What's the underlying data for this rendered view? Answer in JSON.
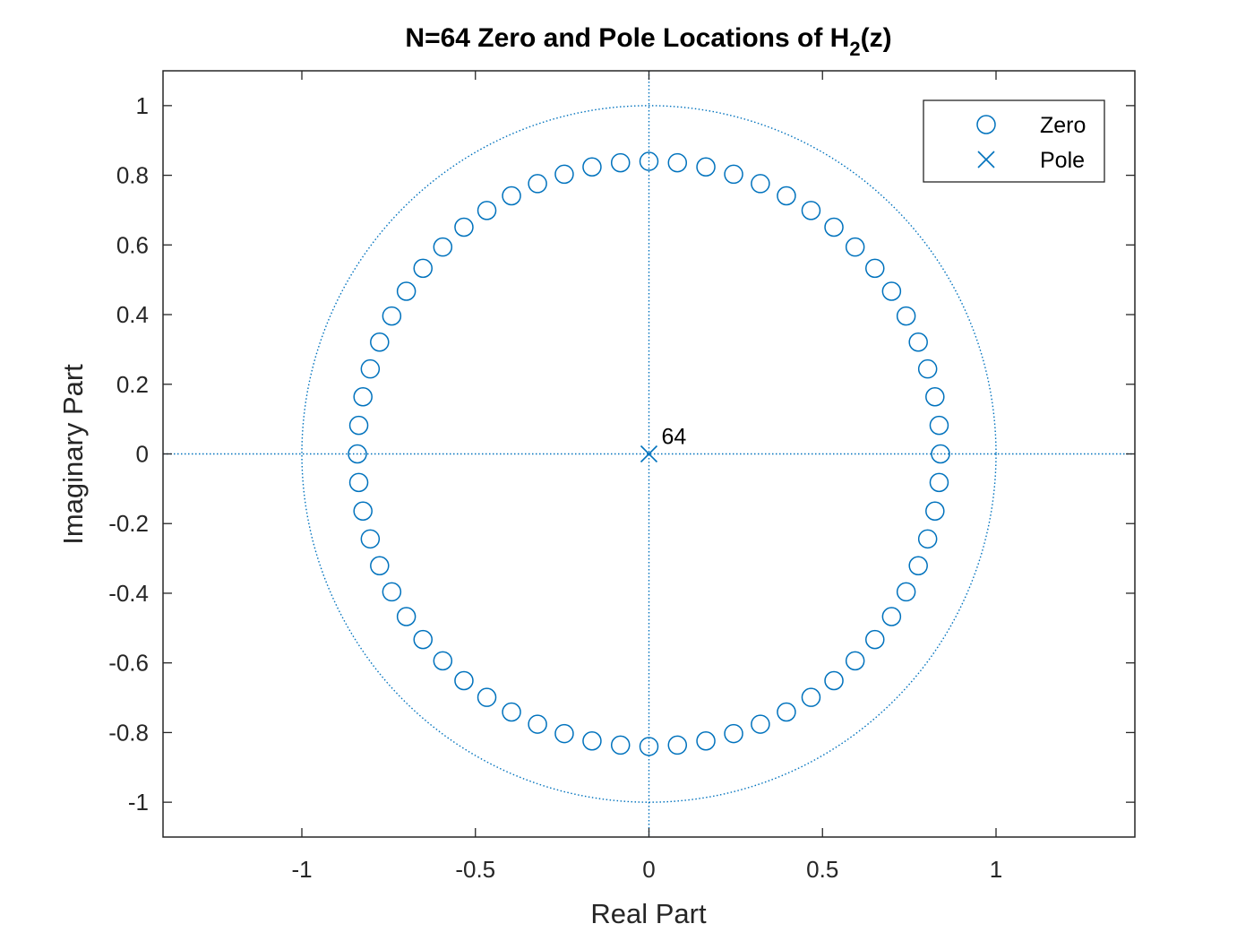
{
  "chart_data": {
    "type": "scatter",
    "title": {
      "prefix": "N=64 Zero and Pole Locations of H",
      "subscript": "2",
      "suffix": "(z)"
    },
    "xlabel": "Real Part",
    "ylabel": "Imaginary Part",
    "xlim": [
      -1.4,
      1.4
    ],
    "ylim": [
      -1.1,
      1.1
    ],
    "xticks": [
      -1,
      -0.5,
      0,
      0.5,
      1
    ],
    "xtick_labels": [
      "-1",
      "-0.5",
      "0",
      "0.5",
      "1"
    ],
    "yticks": [
      -1,
      -0.8,
      -0.6,
      -0.4,
      -0.2,
      0,
      0.2,
      0.4,
      0.6,
      0.8,
      1
    ],
    "ytick_labels": [
      "-1",
      "-0.8",
      "-0.6",
      "-0.4",
      "-0.2",
      "0",
      "0.2",
      "0.4",
      "0.6",
      "0.8",
      "1"
    ],
    "grid": false,
    "unit_circle": true,
    "legend": {
      "location": "top-right",
      "entries": [
        "Zero",
        "Pole"
      ]
    },
    "series": [
      {
        "name": "Zero",
        "marker": "circle",
        "points": [
          [
            0.84,
            0.0
          ],
          [
            0.836,
            0.082
          ],
          [
            0.824,
            0.164
          ],
          [
            0.803,
            0.244
          ],
          [
            0.776,
            0.321
          ],
          [
            0.741,
            0.396
          ],
          [
            0.699,
            0.467
          ],
          [
            0.651,
            0.533
          ],
          [
            0.594,
            0.594
          ],
          [
            0.533,
            0.651
          ],
          [
            0.467,
            0.699
          ],
          [
            0.396,
            0.741
          ],
          [
            0.321,
            0.776
          ],
          [
            0.244,
            0.803
          ],
          [
            0.164,
            0.824
          ],
          [
            0.082,
            0.836
          ],
          [
            0.0,
            0.84
          ],
          [
            -0.082,
            0.836
          ],
          [
            -0.164,
            0.824
          ],
          [
            -0.244,
            0.803
          ],
          [
            -0.321,
            0.776
          ],
          [
            -0.396,
            0.741
          ],
          [
            -0.467,
            0.699
          ],
          [
            -0.533,
            0.651
          ],
          [
            -0.594,
            0.594
          ],
          [
            -0.651,
            0.533
          ],
          [
            -0.699,
            0.467
          ],
          [
            -0.741,
            0.396
          ],
          [
            -0.776,
            0.321
          ],
          [
            -0.803,
            0.244
          ],
          [
            -0.824,
            0.164
          ],
          [
            -0.836,
            0.082
          ],
          [
            -0.84,
            0.0
          ],
          [
            -0.836,
            -0.082
          ],
          [
            -0.824,
            -0.164
          ],
          [
            -0.803,
            -0.244
          ],
          [
            -0.776,
            -0.321
          ],
          [
            -0.741,
            -0.396
          ],
          [
            -0.699,
            -0.467
          ],
          [
            -0.651,
            -0.533
          ],
          [
            -0.594,
            -0.594
          ],
          [
            -0.533,
            -0.651
          ],
          [
            -0.467,
            -0.699
          ],
          [
            -0.396,
            -0.741
          ],
          [
            -0.321,
            -0.776
          ],
          [
            -0.244,
            -0.803
          ],
          [
            -0.164,
            -0.824
          ],
          [
            -0.082,
            -0.836
          ],
          [
            0.0,
            -0.84
          ],
          [
            0.082,
            -0.836
          ],
          [
            0.164,
            -0.824
          ],
          [
            0.244,
            -0.803
          ],
          [
            0.321,
            -0.776
          ],
          [
            0.396,
            -0.741
          ],
          [
            0.467,
            -0.699
          ],
          [
            0.533,
            -0.651
          ],
          [
            0.594,
            -0.594
          ],
          [
            0.651,
            -0.533
          ],
          [
            0.699,
            -0.467
          ],
          [
            0.741,
            -0.396
          ],
          [
            0.776,
            -0.321
          ],
          [
            0.803,
            -0.244
          ],
          [
            0.824,
            -0.164
          ],
          [
            0.836,
            -0.082
          ]
        ]
      },
      {
        "name": "Pole",
        "marker": "x",
        "points": [
          [
            0,
            0
          ]
        ],
        "multiplicity_label": "64"
      }
    ],
    "colors": {
      "series": "#0072BD",
      "axes": "#262626",
      "background": "#ffffff"
    }
  }
}
